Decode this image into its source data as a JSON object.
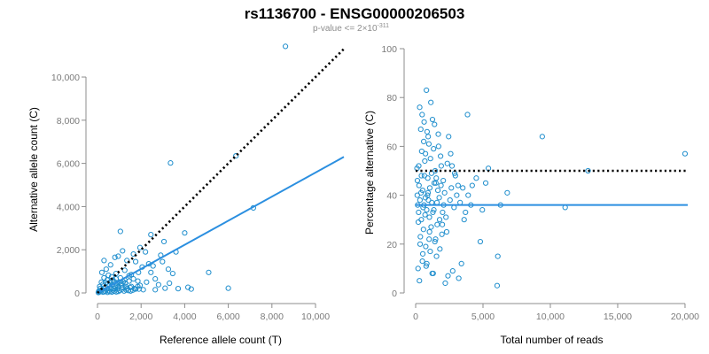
{
  "title": "rs1136700 - ENSG00000206503",
  "subtitle": {
    "prefix": "p-value <= 2×10",
    "exponent": "-311"
  },
  "chart_data": [
    {
      "type": "scatter",
      "id": "left",
      "xlabel": "Reference allele count (T)",
      "ylabel": "Alternative allele count (C)",
      "xlim": [
        0,
        11300
      ],
      "ylim": [
        0,
        11600
      ],
      "xticks": [
        0,
        2000,
        4000,
        6000,
        8000,
        10000
      ],
      "xtick_labels": [
        "0",
        "2,000",
        "4,000",
        "6,000",
        "8,000",
        "10,000"
      ],
      "yticks": [
        0,
        2000,
        4000,
        6000,
        8000,
        10000
      ],
      "ytick_labels": [
        "0",
        "2,000",
        "4,000",
        "6,000",
        "8,000",
        "10,000"
      ],
      "point_color": "#1f8ecd",
      "fit_line": {
        "color": "#2b8fe0",
        "from": [
          0,
          0
        ],
        "to": [
          11300,
          6300
        ]
      },
      "reference_line": {
        "color": "#000000",
        "style": "dotted",
        "from": [
          0,
          0
        ],
        "to": [
          11300,
          11300
        ]
      },
      "points": [
        [
          8620,
          11420
        ],
        [
          3350,
          6020
        ],
        [
          6350,
          6350
        ],
        [
          7150,
          3940
        ],
        [
          4000,
          2780
        ],
        [
          5100,
          950
        ],
        [
          6000,
          220
        ],
        [
          4150,
          260
        ],
        [
          3600,
          1900
        ],
        [
          3050,
          2380
        ],
        [
          2900,
          1750
        ],
        [
          2450,
          2700
        ],
        [
          1950,
          2100
        ],
        [
          1350,
          1500
        ],
        [
          1050,
          2850
        ],
        [
          2650,
          650
        ],
        [
          3450,
          900
        ],
        [
          3300,
          450
        ],
        [
          2800,
          380
        ],
        [
          2450,
          950
        ],
        [
          2050,
          1200
        ],
        [
          1750,
          1450
        ],
        [
          1250,
          1050
        ],
        [
          850,
          900
        ],
        [
          1550,
          850
        ],
        [
          2250,
          500
        ],
        [
          1850,
          300
        ],
        [
          1450,
          550
        ],
        [
          3100,
          220
        ],
        [
          2650,
          150
        ],
        [
          3700,
          200
        ],
        [
          4300,
          180
        ],
        [
          2200,
          1900
        ],
        [
          1650,
          1800
        ],
        [
          800,
          1650
        ],
        [
          600,
          1300
        ],
        [
          400,
          1100
        ],
        [
          950,
          1700
        ],
        [
          1150,
          1950
        ],
        [
          300,
          700
        ],
        [
          500,
          820
        ],
        [
          700,
          600
        ],
        [
          900,
          450
        ],
        [
          1100,
          380
        ],
        [
          1300,
          300
        ],
        [
          1500,
          250
        ],
        [
          1700,
          200
        ],
        [
          1900,
          180
        ],
        [
          2100,
          150
        ],
        [
          150,
          120
        ],
        [
          250,
          400
        ],
        [
          350,
          250
        ],
        [
          450,
          600
        ],
        [
          550,
          350
        ],
        [
          650,
          750
        ],
        [
          750,
          200
        ],
        [
          850,
          650
        ],
        [
          950,
          300
        ],
        [
          1050,
          700
        ],
        [
          1150,
          250
        ],
        [
          1250,
          600
        ],
        [
          1350,
          200
        ],
        [
          1450,
          800
        ],
        [
          1550,
          300
        ],
        [
          1650,
          650
        ],
        [
          1750,
          180
        ],
        [
          1850,
          550
        ],
        [
          1950,
          350
        ],
        [
          200,
          950
        ],
        [
          300,
          1500
        ],
        [
          100,
          300
        ],
        [
          180,
          500
        ],
        [
          60,
          80
        ],
        [
          120,
          200
        ],
        [
          80,
          50
        ],
        [
          220,
          150
        ],
        [
          320,
          90
        ],
        [
          420,
          160
        ],
        [
          520,
          110
        ],
        [
          620,
          220
        ],
        [
          720,
          140
        ],
        [
          820,
          260
        ],
        [
          920,
          180
        ],
        [
          1020,
          120
        ],
        [
          1120,
          170
        ],
        [
          1220,
          90
        ],
        [
          1320,
          140
        ],
        [
          1420,
          110
        ],
        [
          1520,
          90
        ],
        [
          1620,
          130
        ],
        [
          40,
          20
        ],
        [
          160,
          60
        ],
        [
          260,
          40
        ],
        [
          360,
          70
        ],
        [
          460,
          30
        ],
        [
          560,
          60
        ],
        [
          660,
          45
        ],
        [
          760,
          80
        ],
        [
          860,
          50
        ],
        [
          960,
          70
        ],
        [
          380,
          480
        ],
        [
          480,
          420
        ],
        [
          580,
          500
        ],
        [
          680,
          380
        ],
        [
          780,
          520
        ],
        [
          880,
          360
        ],
        [
          980,
          480
        ],
        [
          1080,
          440
        ],
        [
          1180,
          520
        ],
        [
          1280,
          460
        ],
        [
          2350,
          1350
        ],
        [
          2550,
          1250
        ],
        [
          1880,
          950
        ],
        [
          2980,
          1450
        ],
        [
          3250,
          1100
        ]
      ]
    },
    {
      "type": "scatter",
      "id": "right",
      "xlabel": "Total number of reads",
      "ylabel": "Percentage alternative (C)",
      "xlim": [
        0,
        20200
      ],
      "ylim": [
        0,
        100
      ],
      "xticks": [
        0,
        5000,
        10000,
        15000,
        20000
      ],
      "xtick_labels": [
        "0",
        "5,000",
        "10,000",
        "15,000",
        "20,000"
      ],
      "yticks": [
        0,
        20,
        40,
        60,
        80,
        100
      ],
      "ytick_labels": [
        "0",
        "20",
        "40",
        "60",
        "80",
        "100"
      ],
      "point_color": "#1f8ecd",
      "fit_line": {
        "color": "#2b8fe0",
        "from": [
          0,
          36
        ],
        "to": [
          20200,
          36
        ]
      },
      "reference_line": {
        "color": "#000000",
        "style": "dotted",
        "from": [
          0,
          50
        ],
        "to": [
          20200,
          50
        ]
      },
      "points": [
        [
          20000,
          57
        ],
        [
          9400,
          64
        ],
        [
          12800,
          50
        ],
        [
          11100,
          35
        ],
        [
          6800,
          41
        ],
        [
          6300,
          36
        ],
        [
          6100,
          15
        ],
        [
          6050,
          3
        ],
        [
          5400,
          51
        ],
        [
          5200,
          45
        ],
        [
          4950,
          34
        ],
        [
          4800,
          21
        ],
        [
          4500,
          47
        ],
        [
          4200,
          44
        ],
        [
          3850,
          73
        ],
        [
          3600,
          30
        ],
        [
          3400,
          12
        ],
        [
          3200,
          6
        ],
        [
          3050,
          40
        ],
        [
          2900,
          49
        ],
        [
          2750,
          9
        ],
        [
          2600,
          57
        ],
        [
          2450,
          64
        ],
        [
          2300,
          25
        ],
        [
          2150,
          41
        ],
        [
          2000,
          33
        ],
        [
          1900,
          52
        ],
        [
          1800,
          18
        ],
        [
          1700,
          60
        ],
        [
          1600,
          28
        ],
        [
          1500,
          45
        ],
        [
          1400,
          69
        ],
        [
          1300,
          8
        ],
        [
          1200,
          37
        ],
        [
          1100,
          55
        ],
        [
          1000,
          22
        ],
        [
          900,
          47
        ],
        [
          800,
          83
        ],
        [
          700,
          32
        ],
        [
          600,
          62
        ],
        [
          500,
          13
        ],
        [
          400,
          41
        ],
        [
          300,
          76
        ],
        [
          200,
          29
        ],
        [
          100,
          51
        ],
        [
          150,
          36
        ],
        [
          250,
          44
        ],
        [
          350,
          23
        ],
        [
          450,
          58
        ],
        [
          550,
          35
        ],
        [
          650,
          48
        ],
        [
          750,
          19
        ],
        [
          850,
          66
        ],
        [
          950,
          38
        ],
        [
          1050,
          43
        ],
        [
          1150,
          27
        ],
        [
          1250,
          71
        ],
        [
          1350,
          34
        ],
        [
          1450,
          50
        ],
        [
          1550,
          15
        ],
        [
          1650,
          42
        ],
        [
          1750,
          39
        ],
        [
          1850,
          56
        ],
        [
          1950,
          24
        ],
        [
          2050,
          46
        ],
        [
          2250,
          31
        ],
        [
          2350,
          53
        ],
        [
          2550,
          38
        ],
        [
          2650,
          43
        ],
        [
          2850,
          35
        ],
        [
          180,
          10
        ],
        [
          280,
          5
        ],
        [
          380,
          67
        ],
        [
          480,
          73
        ],
        [
          580,
          26
        ],
        [
          680,
          54
        ],
        [
          780,
          11
        ],
        [
          880,
          40
        ],
        [
          980,
          61
        ],
        [
          1080,
          17
        ],
        [
          1180,
          49
        ],
        [
          1280,
          33
        ],
        [
          1380,
          45
        ],
        [
          1480,
          22
        ],
        [
          1580,
          37
        ],
        [
          1680,
          65
        ],
        [
          1780,
          30
        ],
        [
          1880,
          44
        ],
        [
          1980,
          28
        ],
        [
          2080,
          36
        ],
        [
          120,
          40
        ],
        [
          220,
          33
        ],
        [
          320,
          38
        ],
        [
          420,
          30
        ],
        [
          520,
          42
        ],
        [
          620,
          36
        ],
        [
          720,
          39
        ],
        [
          820,
          34
        ],
        [
          920,
          41
        ],
        [
          1020,
          31
        ],
        [
          130,
          46
        ],
        [
          230,
          52
        ],
        [
          330,
          20
        ],
        [
          430,
          48
        ],
        [
          530,
          16
        ],
        [
          630,
          70
        ],
        [
          730,
          57
        ],
        [
          830,
          12
        ],
        [
          930,
          64
        ],
        [
          1030,
          25
        ],
        [
          1130,
          78
        ],
        [
          1230,
          8
        ],
        [
          1330,
          59
        ],
        [
          1430,
          21
        ],
        [
          1530,
          47
        ],
        [
          3300,
          37
        ],
        [
          3500,
          43
        ],
        [
          3700,
          33
        ],
        [
          3900,
          40
        ],
        [
          4100,
          36
        ],
        [
          2700,
          52
        ],
        [
          2950,
          48
        ],
        [
          3150,
          44
        ],
        [
          2400,
          7
        ],
        [
          2200,
          4
        ]
      ]
    }
  ]
}
